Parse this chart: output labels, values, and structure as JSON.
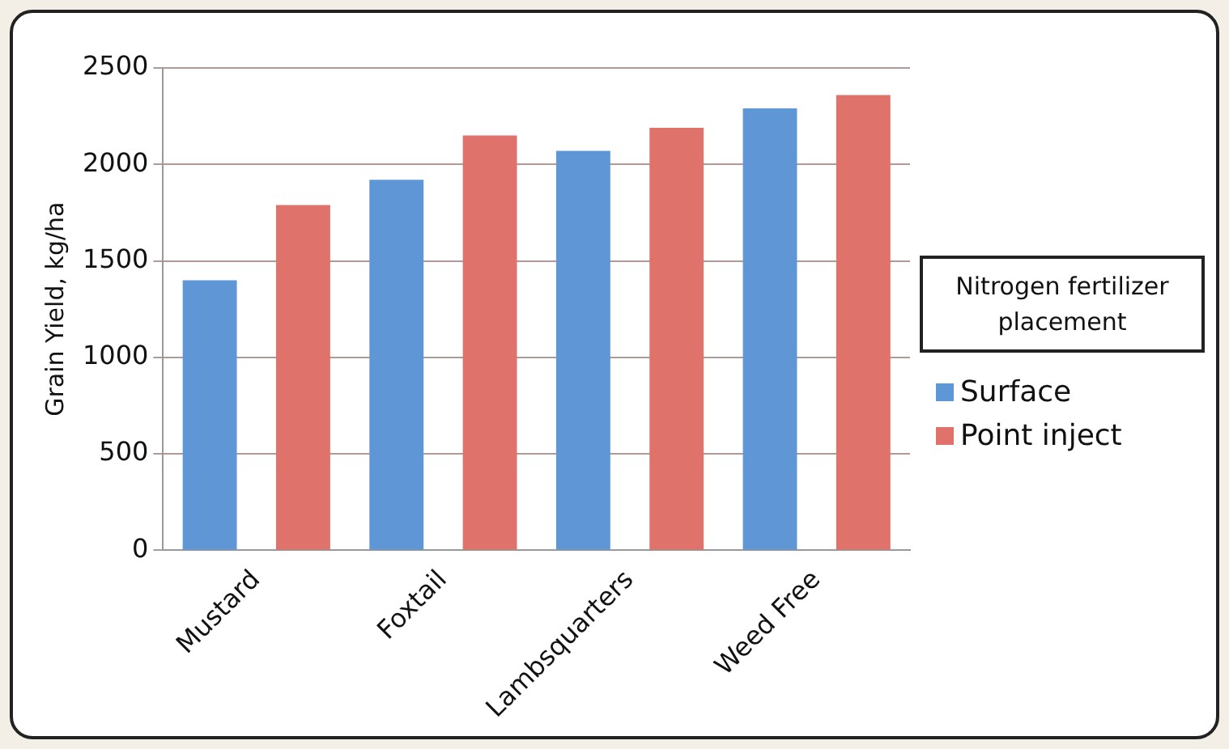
{
  "chart_data": {
    "type": "bar",
    "ylabel": "Grain Yield, kg/ha",
    "legend_title": "Nitrogen fertilizer placement",
    "categories": [
      "Mustard",
      "Foxtail",
      "Lambsquarters",
      "Weed Free"
    ],
    "series": [
      {
        "name": "Surface",
        "color": "#5f97d6",
        "values": [
          1400,
          1920,
          2070,
          2290
        ]
      },
      {
        "name": "Point inject",
        "color": "#e0726c",
        "values": [
          1790,
          2150,
          2190,
          2360
        ]
      }
    ],
    "ylim": [
      0,
      2500
    ],
    "yticks": [
      0,
      500,
      1000,
      1500,
      2000,
      2500
    ],
    "grid": "y",
    "legend": "right"
  }
}
